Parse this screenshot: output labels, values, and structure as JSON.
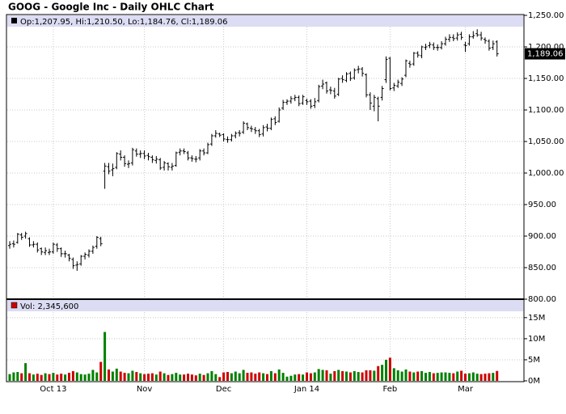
{
  "chart_data": {
    "type": "ohlc",
    "title": "GOOG - Google Inc - Daily OHLC Chart",
    "ohlc_legend": "Op:1,207.95, Hi:1,210.50, Lo:1,184.76, Cl:1,189.06",
    "volume_legend": "Vol: 2,345,600",
    "last_close_label": "1,189.06",
    "categories": [
      null,
      null,
      null,
      null,
      null,
      null,
      null,
      null,
      null,
      null,
      null,
      "Oct 13",
      null,
      null,
      null,
      null,
      null,
      null,
      null,
      null,
      null,
      null,
      null,
      null,
      null,
      null,
      null,
      null,
      null,
      null,
      null,
      null,
      null,
      null,
      "Nov",
      null,
      null,
      null,
      null,
      null,
      null,
      null,
      null,
      null,
      null,
      null,
      null,
      null,
      null,
      null,
      null,
      null,
      null,
      null,
      "Dec",
      null,
      null,
      null,
      null,
      null,
      null,
      null,
      null,
      null,
      null,
      null,
      null,
      null,
      null,
      null,
      null,
      null,
      null,
      null,
      null,
      "Jan 14",
      null,
      null,
      null,
      null,
      null,
      null,
      null,
      null,
      null,
      null,
      null,
      null,
      null,
      null,
      null,
      null,
      null,
      null,
      null,
      null,
      "Feb",
      null,
      null,
      null,
      null,
      null,
      null,
      null,
      null,
      null,
      null,
      null,
      null,
      null,
      null,
      null,
      null,
      null,
      null,
      "Mar",
      null,
      null,
      null,
      null,
      null,
      null,
      null,
      null
    ],
    "open": [
      885,
      888,
      890,
      902,
      900,
      896,
      886,
      887,
      880,
      874,
      874,
      875,
      886,
      880,
      872,
      870,
      863,
      854,
      856,
      868,
      870,
      876,
      884,
      896,
      1003,
      1010,
      1005,
      1009,
      1030,
      1025,
      1014,
      1016,
      1035,
      1030,
      1031,
      1028,
      1025,
      1020,
      1021,
      1009,
      1015,
      1009,
      1012,
      1033,
      1035,
      1032,
      1024,
      1022,
      1024,
      1035,
      1032,
      1046,
      1059,
      1062,
      1061,
      1053,
      1053,
      1059,
      1064,
      1065,
      1078,
      1071,
      1069,
      1067,
      1062,
      1073,
      1071,
      1086,
      1082,
      1103,
      1112,
      1114,
      1118,
      1120,
      1111,
      1115,
      1114,
      1107,
      1115,
      1138,
      1143,
      1132,
      1130,
      1125,
      1150,
      1147,
      1158,
      1151,
      1164,
      1165,
      1156,
      1124,
      1106,
      1118,
      1120,
      1148,
      1182,
      1135,
      1138,
      1142,
      1155,
      1174,
      1173,
      1190,
      1186,
      1199,
      1202,
      1203,
      1199,
      1199,
      1205,
      1212,
      1215,
      1214,
      1220,
      1203,
      1205,
      1216,
      1221,
      1219,
      1212,
      1209,
      1199,
      1207.95
    ],
    "high": [
      892,
      893,
      905,
      905,
      907,
      898,
      892,
      890,
      882,
      882,
      880,
      890,
      889,
      882,
      877,
      872,
      866,
      860,
      870,
      874,
      879,
      885,
      900,
      899,
      1016,
      1016,
      1015,
      1033,
      1036,
      1028,
      1020,
      1040,
      1039,
      1036,
      1036,
      1032,
      1028,
      1027,
      1024,
      1019,
      1017,
      1016,
      1034,
      1039,
      1039,
      1035,
      1028,
      1027,
      1038,
      1039,
      1048,
      1062,
      1068,
      1064,
      1063,
      1058,
      1062,
      1066,
      1068,
      1082,
      1080,
      1075,
      1073,
      1070,
      1076,
      1078,
      1088,
      1090,
      1104,
      1116,
      1117,
      1122,
      1124,
      1123,
      1124,
      1118,
      1117,
      1119,
      1140,
      1148,
      1145,
      1137,
      1135,
      1151,
      1155,
      1160,
      1161,
      1166,
      1170,
      1168,
      1158,
      1128,
      1124,
      1121,
      1138,
      1185,
      1184,
      1143,
      1148,
      1152,
      1180,
      1178,
      1192,
      1193,
      1202,
      1205,
      1208,
      1207,
      1204,
      1209,
      1216,
      1220,
      1220,
      1223,
      1224,
      1208,
      1220,
      1225,
      1228,
      1224,
      1215,
      1212,
      1210,
      1210.5
    ],
    "low": [
      880,
      882,
      888,
      894,
      896,
      883,
      882,
      874,
      870,
      870,
      870,
      872,
      875,
      867,
      866,
      860,
      848,
      845,
      853,
      863,
      866,
      872,
      880,
      884,
      975,
      998,
      995,
      1006,
      1020,
      1010,
      1008,
      1012,
      1026,
      1024,
      1022,
      1020,
      1016,
      1015,
      1005,
      1004,
      1004,
      1004,
      1010,
      1028,
      1030,
      1020,
      1018,
      1017,
      1020,
      1028,
      1030,
      1043,
      1056,
      1057,
      1050,
      1048,
      1050,
      1055,
      1058,
      1062,
      1068,
      1065,
      1062,
      1057,
      1058,
      1066,
      1068,
      1076,
      1080,
      1100,
      1108,
      1110,
      1114,
      1106,
      1108,
      1108,
      1102,
      1103,
      1112,
      1133,
      1126,
      1125,
      1118,
      1122,
      1143,
      1144,
      1146,
      1148,
      1158,
      1153,
      1120,
      1100,
      1098,
      1082,
      1115,
      1143,
      1131,
      1130,
      1135,
      1138,
      1152,
      1167,
      1170,
      1183,
      1182,
      1195,
      1198,
      1195,
      1194,
      1196,
      1202,
      1208,
      1209,
      1210,
      1211,
      1192,
      1202,
      1213,
      1216,
      1210,
      1205,
      1194,
      1195,
      1184.76
    ],
    "close": [
      887,
      887,
      903,
      898,
      904,
      886,
      887,
      878,
      875,
      877,
      875,
      887,
      880,
      872,
      872,
      865,
      853,
      855,
      868,
      871,
      876,
      882,
      898,
      888,
      1011,
      1003,
      1007,
      1031,
      1025,
      1015,
      1015,
      1037,
      1030,
      1031,
      1027,
      1026,
      1021,
      1022,
      1008,
      1016,
      1010,
      1011,
      1032,
      1035,
      1034,
      1024,
      1023,
      1022,
      1035,
      1032,
      1045,
      1059,
      1063,
      1060,
      1054,
      1053,
      1059,
      1063,
      1063,
      1079,
      1072,
      1070,
      1067,
      1061,
      1072,
      1071,
      1085,
      1080,
      1100,
      1112,
      1114,
      1118,
      1120,
      1110,
      1121,
      1113,
      1106,
      1113,
      1137,
      1141,
      1130,
      1131,
      1122,
      1149,
      1148,
      1157,
      1150,
      1163,
      1165,
      1158,
      1124,
      1111,
      1120,
      1106,
      1134,
      1180,
      1134,
      1139,
      1144,
      1149,
      1178,
      1172,
      1190,
      1187,
      1200,
      1200,
      1204,
      1199,
      1199,
      1205,
      1212,
      1215,
      1213,
      1219,
      1215,
      1202,
      1216,
      1218,
      1219,
      1214,
      1210,
      1198,
      1205,
      1189.06
    ],
    "volume": [
      1.6,
      2.0,
      2.1,
      1.8,
      4.2,
      1.8,
      1.5,
      1.7,
      1.4,
      1.8,
      1.6,
      1.9,
      1.5,
      1.7,
      1.5,
      1.9,
      2.3,
      2.0,
      1.6,
      1.5,
      1.7,
      2.6,
      2.0,
      4.5,
      11.6,
      2.7,
      2.2,
      2.9,
      2.2,
      1.9,
      1.8,
      2.4,
      2.1,
      1.8,
      1.6,
      1.7,
      1.8,
      1.5,
      2.2,
      1.8,
      1.4,
      1.6,
      1.9,
      1.5,
      1.5,
      1.7,
      1.5,
      1.3,
      1.7,
      1.4,
      1.8,
      2.3,
      1.6,
      0.9,
      2.0,
      2.1,
      1.8,
      2.2,
      1.8,
      2.6,
      1.9,
      2.0,
      1.7,
      2.0,
      1.8,
      1.6,
      2.3,
      1.8,
      2.7,
      1.9,
      1.0,
      1.2,
      1.5,
      1.6,
      1.5,
      2.0,
      1.8,
      2.0,
      2.8,
      2.6,
      2.5,
      1.7,
      2.3,
      2.6,
      2.3,
      2.2,
      2.0,
      2.3,
      2.1,
      2.0,
      2.5,
      2.5,
      2.4,
      3.5,
      3.8,
      5.0,
      5.5,
      3.0,
      2.5,
      2.2,
      2.7,
      2.2,
      2.0,
      2.2,
      2.3,
      1.9,
      2.1,
      1.8,
      1.9,
      2.0,
      2.0,
      1.9,
      1.8,
      2.2,
      2.4,
      1.7,
      1.8,
      2.0,
      1.7,
      1.6,
      1.7,
      1.8,
      1.9,
      2.3456
    ],
    "ylim": [
      800,
      1250
    ],
    "yticks": [
      {
        "value": 800,
        "label": "800.00"
      },
      {
        "value": 850,
        "label": "850.00"
      },
      {
        "value": 900,
        "label": "900.00"
      },
      {
        "value": 950,
        "label": "950.00"
      },
      {
        "value": 1000,
        "label": "1,000.00"
      },
      {
        "value": 1050,
        "label": "1,050.00"
      },
      {
        "value": 1100,
        "label": "1,100.00"
      },
      {
        "value": 1150,
        "label": "1,150.00"
      },
      {
        "value": 1200,
        "label": "1,200.00"
      },
      {
        "value": 1250,
        "label": "1,250.00"
      }
    ],
    "volume_ylim": [
      0,
      19
    ],
    "volume_ticks": [
      {
        "value": 0,
        "label": "0M"
      },
      {
        "value": 5,
        "label": "5M"
      },
      {
        "value": 10,
        "label": "10M"
      },
      {
        "value": 15,
        "label": "15M"
      }
    ],
    "color": "#000000",
    "up_color": "#008000",
    "down_color": "#cc0000",
    "legend_square_color": "#000000",
    "volume_legend_color": "#cc0000",
    "grid": true
  }
}
